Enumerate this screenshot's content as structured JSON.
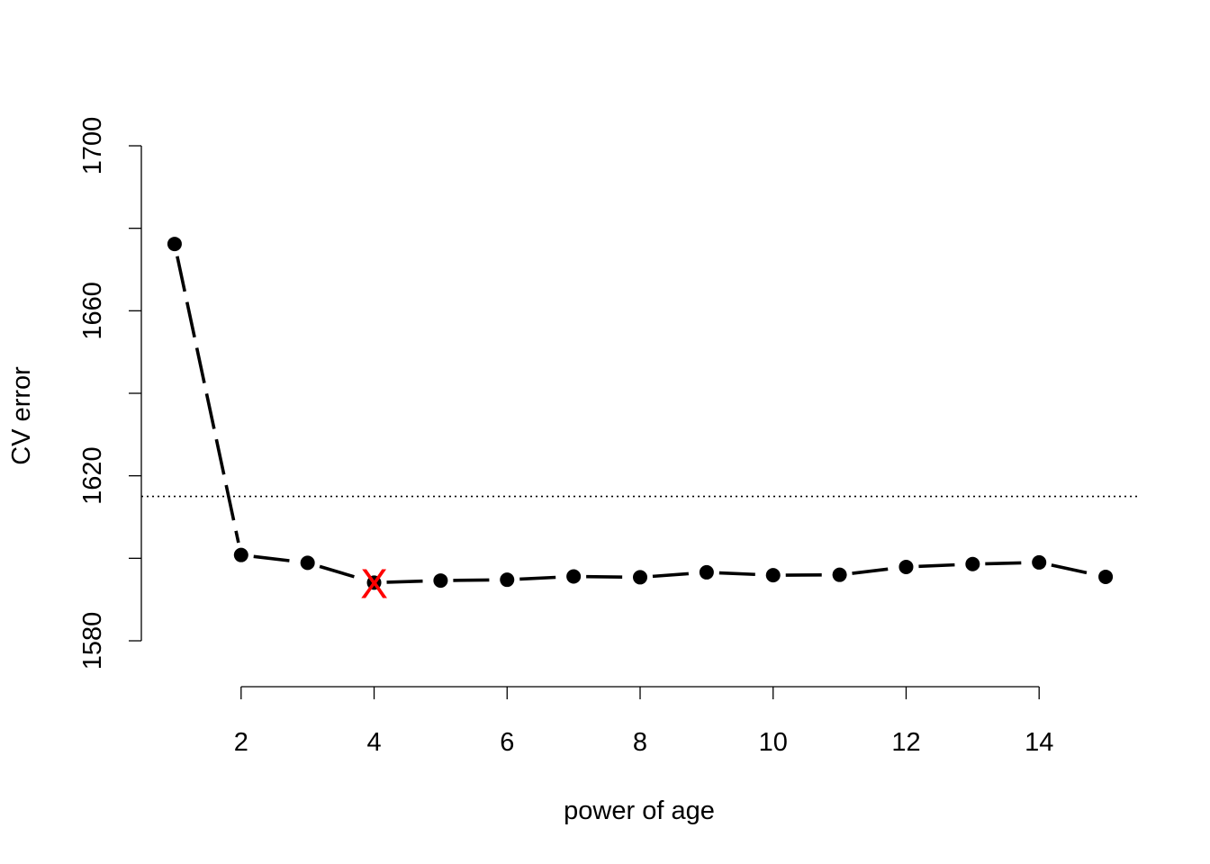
{
  "chart_data": {
    "type": "line",
    "title": "",
    "xlabel": "power of age",
    "ylabel": "CV error",
    "x": [
      1,
      2,
      3,
      4,
      5,
      6,
      7,
      8,
      9,
      10,
      11,
      12,
      13,
      14,
      15
    ],
    "series": [
      {
        "values": [
          1676.2,
          1600.8,
          1598.9,
          1594.1,
          1594.6,
          1594.8,
          1595.6,
          1595.4,
          1596.6,
          1595.9,
          1596.0,
          1597.9,
          1598.6,
          1599.0,
          1595.5
        ],
        "color": "#000000",
        "line_style": "dashed",
        "marker": "filled-circle"
      }
    ],
    "xlim": [
      0.5,
      15.5
    ],
    "ylim": [
      1580,
      1700
    ],
    "x_ticks": [
      2,
      4,
      6,
      8,
      10,
      12,
      14
    ],
    "x_tick_labels": [
      "2",
      "4",
      "6",
      "8",
      "10",
      "12",
      "14"
    ],
    "y_ticks": [
      1580,
      1600,
      1620,
      1640,
      1660,
      1680,
      1700
    ],
    "y_tick_labels": [
      "1580",
      "",
      "1620",
      "",
      "1660",
      "",
      "1700"
    ],
    "hline": {
      "y": 1615,
      "style": "dotted",
      "color": "#000000"
    },
    "highlight": {
      "x": 4,
      "y": 1594.1,
      "label": "X",
      "color": "#ff0000"
    },
    "grid": false,
    "legend": "none"
  }
}
